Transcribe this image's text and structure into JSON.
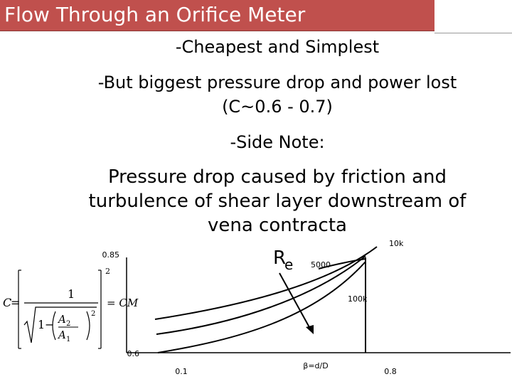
{
  "title": "Flow Through an Orifice Meter",
  "bullets": [
    "-Cheapest and Simplest",
    "-But biggest pressure drop and power lost",
    "(C~0.6 - 0.7)",
    "-Side Note:",
    "Pressure drop caused by friction and",
    "turbulence of shear  layer downstream of",
    "vena contracta"
  ],
  "formula": {
    "lhs": "C",
    "numerator": "1",
    "a2": "A",
    "a2_sub": "2",
    "a1": "A",
    "a1_sub": "1",
    "one": "1",
    "minus": "−",
    "power": "2",
    "rhs": "= CM"
  },
  "chart": {
    "y_top_label": "0.85",
    "y_bottom_label": "0.6",
    "x_left_label": "0.1",
    "x_mid_label": "β=d/D",
    "x_right_label": "0.8",
    "re_label": "R",
    "re_sub": "e",
    "curve_labels": [
      "10k",
      "5000",
      "100k"
    ],
    "colors": {
      "line": "#000000",
      "title_bg": "#c0504d"
    }
  }
}
